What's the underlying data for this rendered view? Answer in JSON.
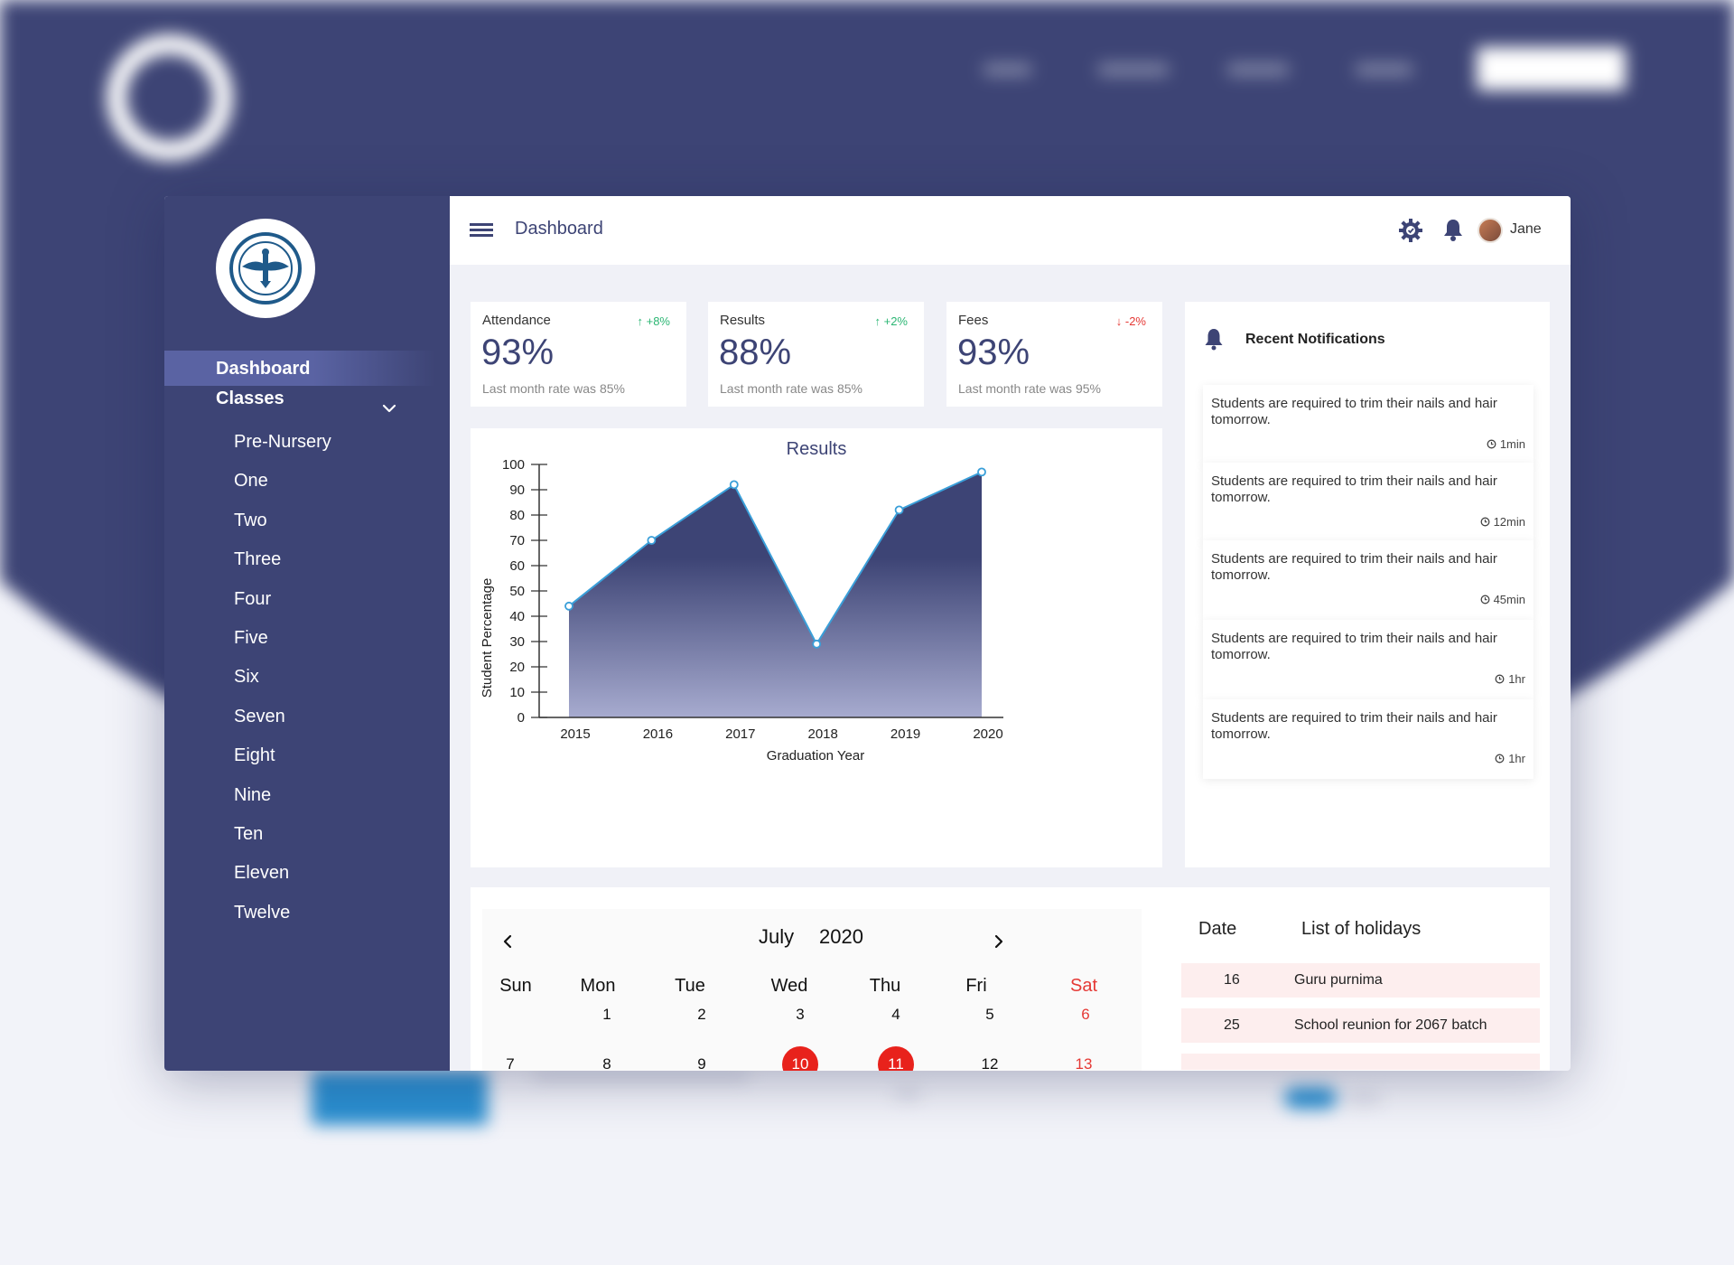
{
  "header": {
    "title": "Dashboard",
    "user_name": "Jane"
  },
  "sidebar": {
    "dashboard_label": "Dashboard",
    "classes_label": "Classes",
    "classes": [
      "Pre-Nursery",
      "One",
      "Two",
      "Three",
      "Four",
      "Five",
      "Six",
      "Seven",
      "Eight",
      "Nine",
      "Ten",
      "Eleven",
      "Twelve"
    ]
  },
  "stats": [
    {
      "label": "Attendance",
      "change": "+8%",
      "direction": "up",
      "value": "93%",
      "sub": "Last month rate was 85%"
    },
    {
      "label": "Results",
      "change": "+2%",
      "direction": "up",
      "value": "88%",
      "sub": "Last month rate was 85%"
    },
    {
      "label": "Fees",
      "change": "-2%",
      "direction": "down",
      "value": "93%",
      "sub": "Last month rate was 95%"
    }
  ],
  "chart_data": {
    "type": "area",
    "title": "Results",
    "xlabel": "Graduation Year",
    "ylabel": "Student  Percentage",
    "categories": [
      "2015",
      "2016",
      "2017",
      "2018",
      "2019",
      "2020"
    ],
    "values": [
      44,
      70,
      92,
      29,
      82,
      97
    ],
    "ylim": [
      0,
      100
    ],
    "yticks": [
      0,
      10,
      20,
      30,
      40,
      50,
      60,
      70,
      80,
      90,
      100
    ],
    "colors": {
      "fill_top": "#3d4475",
      "fill_bottom": "#a7abcf",
      "line": "#3a9fd9"
    }
  },
  "notifications": {
    "title": "Recent Notifications",
    "items": [
      {
        "text": "Students are required to trim their nails and hair tomorrow.",
        "time": "1min"
      },
      {
        "text": "Students are required to trim their nails and hair tomorrow.",
        "time": "12min"
      },
      {
        "text": "Students are required to trim their nails and hair tomorrow.",
        "time": "45min"
      },
      {
        "text": "Students are required to trim their nails and hair tomorrow.",
        "time": "1hr"
      },
      {
        "text": "Students are required to trim their nails and hair tomorrow.",
        "time": "1hr"
      }
    ]
  },
  "calendar": {
    "month": "July",
    "year": "2020",
    "days_of_week": [
      "Sun",
      "Mon",
      "Tue",
      "Wed",
      "Thu",
      "Fri",
      "Sat"
    ],
    "week1": [
      "",
      "1",
      "2",
      "3",
      "4",
      "5",
      "6"
    ],
    "week2": [
      "7",
      "8",
      "9",
      "10",
      "11",
      "12",
      "13"
    ],
    "highlighted": [
      "10",
      "11"
    ]
  },
  "holidays": {
    "date_header": "Date",
    "list_header": "List of holidays",
    "rows": [
      {
        "date": "16",
        "name": "Guru purnima"
      },
      {
        "date": "25",
        "name": "School reunion for 2067 batch"
      }
    ]
  },
  "colors": {
    "primary": "#3d4475",
    "accent_red": "#e8221c",
    "positive": "#2bb673",
    "negative": "#e53935"
  }
}
